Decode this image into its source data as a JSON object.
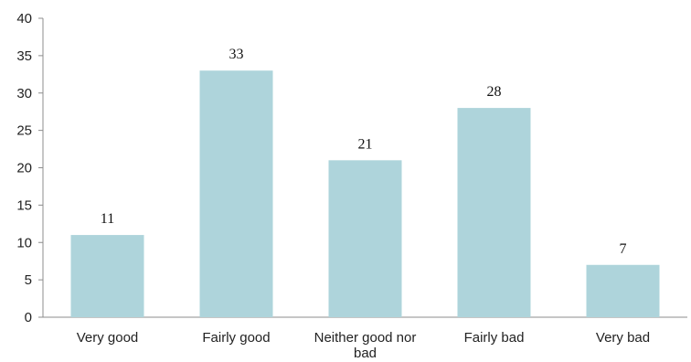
{
  "chart_data": {
    "type": "bar",
    "categories": [
      [
        "Very good"
      ],
      [
        "Fairly good"
      ],
      [
        "Neither good nor",
        "bad"
      ],
      [
        "Fairly bad"
      ],
      [
        "Very bad"
      ]
    ],
    "values": [
      11,
      33,
      21,
      28,
      7
    ],
    "data_labels": [
      "11",
      "33",
      "21",
      "28",
      "7"
    ],
    "ylim": [
      0,
      40
    ],
    "yticks": [
      0,
      5,
      10,
      15,
      20,
      25,
      30,
      35,
      40
    ],
    "grid": false,
    "legend": "none",
    "bar_color": "#aed4db",
    "title": "",
    "xlabel": "",
    "ylabel": ""
  }
}
